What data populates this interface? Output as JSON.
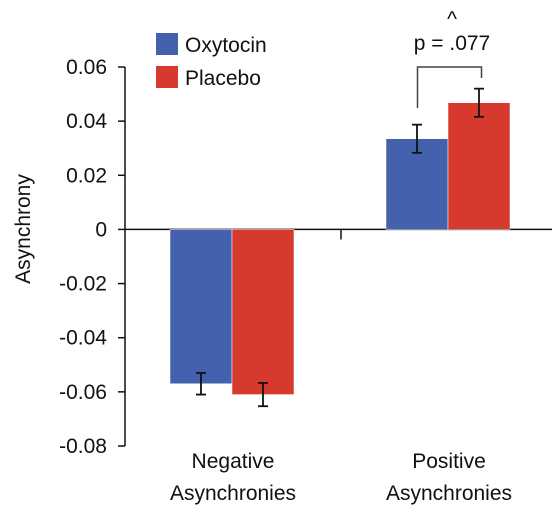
{
  "chart_data": {
    "type": "bar",
    "title": "",
    "xlabel": "",
    "ylabel": "Asynchrony",
    "ylim": [
      -0.08,
      0.06
    ],
    "yticks": [
      0.06,
      0.04,
      0.02,
      0,
      -0.02,
      -0.04,
      -0.06,
      -0.08
    ],
    "ytick_labels": [
      "0.06",
      "0.04",
      "0.02",
      "0",
      "-0.02",
      "-0.04",
      "-0.06",
      "-0.08"
    ],
    "grid": false,
    "legend_position": "top-left",
    "categories": [
      {
        "line1": "Negative",
        "line2": "Asynchronies"
      },
      {
        "line1": "Positive",
        "line2": "Asynchronies"
      }
    ],
    "series": [
      {
        "name": "Oxytocin",
        "color": "#4361ad",
        "values": [
          -0.057,
          0.0335
        ],
        "errors": [
          0.004,
          0.0052
        ]
      },
      {
        "name": "Placebo",
        "color": "#d63a2f",
        "values": [
          -0.061,
          0.0468
        ],
        "errors": [
          0.0043,
          0.0052
        ]
      }
    ],
    "annotation": {
      "symbol": "^",
      "text": "p = .077"
    }
  }
}
